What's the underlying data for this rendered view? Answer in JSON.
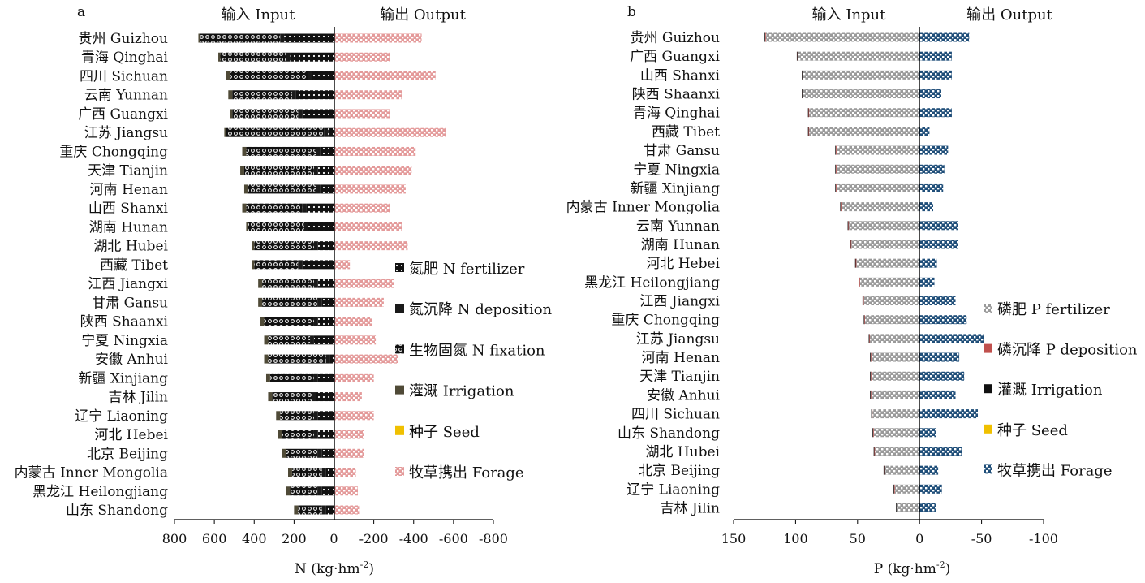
{
  "chart_data": [
    {
      "panel_label": "a",
      "type": "bar",
      "orientation": "horizontal",
      "stacked": true,
      "header_input": "输入 Input",
      "header_output": "输出 Output",
      "xlabel": "N (kg·hm",
      "xlabel_sup": "-2",
      "xlabel_end": ")",
      "xlim": [
        800,
        -800
      ],
      "x_ticks": [
        800,
        600,
        400,
        200,
        0,
        -200,
        -400,
        -600,
        -800
      ],
      "categories": [
        "贵州 Guizhou",
        "青海 Qinghai",
        "四川 Sichuan",
        "云南 Yunnan",
        "广西 Guangxi",
        "江苏 Jiangsu",
        "重庆 Chongqing",
        "天津 Tianjin",
        "河南 Henan",
        "山西 Shanxi",
        "湖南 Hunan",
        "湖北 Hubei",
        "西藏 Tibet",
        "江西 Jiangxi",
        "甘肃 Gansu",
        "陕西 Shaanxi",
        "宁夏 Ningxia",
        "安徽 Anhui",
        "新疆 Xinjiang",
        "吉林 Jilin",
        "辽宁 Liaoning",
        "河北 Hebei",
        "北京 Beijing",
        "内蒙古 Inner Mongolia",
        "黑龙江 Heilongjiang",
        "山东 Shandong"
      ],
      "series": [
        {
          "name": "氮肥 N fertilizer",
          "color": "#1a1a1a",
          "pattern": "fert",
          "values": [
            250,
            220,
            110,
            190,
            160,
            30,
            70,
            80,
            70,
            140,
            130,
            80,
            160,
            80,
            60,
            80,
            100,
            20,
            80,
            90,
            80,
            80,
            60,
            40,
            60,
            40
          ]
        },
        {
          "name": "氮沉降 N deposition",
          "color": "#1a1a1a",
          "pattern": "solid",
          "values": [
            20,
            20,
            20,
            20,
            20,
            20,
            20,
            20,
            20,
            20,
            20,
            20,
            20,
            20,
            20,
            20,
            20,
            20,
            20,
            20,
            20,
            20,
            20,
            20,
            20,
            20
          ]
        },
        {
          "name": "生物固氮 N fixation",
          "color": "#1a1a1a",
          "pattern": "fix",
          "values": [
            400,
            330,
            390,
            300,
            330,
            490,
            350,
            350,
            340,
            280,
            280,
            300,
            220,
            260,
            280,
            250,
            210,
            290,
            220,
            200,
            170,
            160,
            160,
            150,
            140,
            120
          ]
        },
        {
          "name": "灌溉 Irrigation",
          "color": "#4f4a37",
          "pattern": "solid",
          "values": [
            10,
            10,
            20,
            20,
            10,
            10,
            20,
            20,
            20,
            20,
            10,
            10,
            10,
            20,
            20,
            20,
            20,
            20,
            20,
            20,
            20,
            20,
            20,
            20,
            20,
            20
          ]
        },
        {
          "name": "种子 Seed",
          "color": "#f0c000",
          "pattern": "solid",
          "values": [
            0,
            0,
            0,
            0,
            0,
            0,
            0,
            0,
            0,
            0,
            0,
            0,
            0,
            0,
            0,
            0,
            0,
            0,
            0,
            0,
            0,
            0,
            0,
            0,
            0,
            0
          ]
        },
        {
          "name": "牧草携出 Forage",
          "color": "#e49a9a",
          "pattern": "forage",
          "side": "output",
          "values": [
            -440,
            -280,
            -510,
            -340,
            -280,
            -560,
            -410,
            -390,
            -360,
            -280,
            -340,
            -370,
            -80,
            -300,
            -250,
            -190,
            -210,
            -320,
            -200,
            -140,
            -200,
            -150,
            -150,
            -110,
            -120,
            -130
          ]
        }
      ]
    },
    {
      "panel_label": "b",
      "type": "bar",
      "orientation": "horizontal",
      "stacked": true,
      "header_input": "输入 Input",
      "header_output": "输出 Output",
      "xlabel": "P (kg·hm",
      "xlabel_sup": "-2",
      "xlabel_end": ")",
      "xlim": [
        150,
        -100
      ],
      "x_ticks": [
        150,
        100,
        50,
        0,
        -50,
        -100
      ],
      "categories": [
        "贵州 Guizhou",
        "广西 Guangxi",
        "山西 Shanxi",
        "陕西 Shaanxi",
        "青海 Qinghai",
        "西藏 Tibet",
        "甘肃 Gansu",
        "宁夏 Ningxia",
        "新疆 Xinjiang",
        "内蒙古 Inner Mongolia",
        "云南 Yunnan",
        "湖南 Hunan",
        "河北 Hebei",
        "黑龙江 Heilongjiang",
        "江西 Jiangxi",
        "重庆 Chongqing",
        "江苏 Jiangsu",
        "河南 Henan",
        "天津 Tianjin",
        "安徽 Anhui",
        "四川 Sichuan",
        "山东 Shandong",
        "湖北 Hubei",
        "北京 Beijing",
        "辽宁 Liaoning",
        "吉林 Jilin"
      ],
      "series": [
        {
          "name": "磷肥 P fertilizer",
          "color": "#9a9a9a",
          "pattern": "pfert",
          "values": [
            124,
            98,
            94,
            94,
            89,
            89,
            67,
            67,
            67,
            63,
            57,
            55,
            51,
            48,
            45,
            44,
            40,
            39,
            39,
            39,
            38,
            37,
            36,
            28,
            20,
            18
          ]
        },
        {
          "name": "磷沉降 P deposition",
          "color": "#c0504d",
          "pattern": "solid",
          "values": [
            0.5,
            0.5,
            0.5,
            0.5,
            0.5,
            0.5,
            0.5,
            0.5,
            0.5,
            0.5,
            0.5,
            0.5,
            0.5,
            0.5,
            0.5,
            0.5,
            0.5,
            0.5,
            0.5,
            0.5,
            0.5,
            0.5,
            0.5,
            0.5,
            0.5,
            0.5
          ]
        },
        {
          "name": "灌溉 Irrigation",
          "color": "#111111",
          "pattern": "solid",
          "values": [
            0.5,
            0.5,
            0.5,
            0.5,
            0.5,
            0.5,
            0.5,
            0.5,
            0.5,
            0.5,
            0.5,
            0.5,
            0.5,
            0.5,
            0.5,
            0.5,
            0.5,
            0.5,
            0.5,
            0.5,
            0.5,
            0.5,
            0.5,
            0.5,
            0.5,
            0.5
          ]
        },
        {
          "name": "种子 Seed",
          "color": "#f0c000",
          "pattern": "solid",
          "values": [
            0,
            0,
            0,
            0,
            0,
            0,
            0,
            0,
            0,
            0,
            0,
            0,
            0,
            0,
            0,
            0,
            0,
            0,
            0,
            0,
            0,
            0,
            0,
            0,
            0,
            0
          ]
        },
        {
          "name": "牧草携出 Forage",
          "color": "#1f4e79",
          "pattern": "pforage",
          "side": "output",
          "values": [
            -40,
            -26,
            -26,
            -17,
            -26,
            -8,
            -23,
            -20,
            -19,
            -11,
            -31,
            -31,
            -14,
            -12,
            -29,
            -38,
            -52,
            -32,
            -36,
            -29,
            -47,
            -13,
            -34,
            -15,
            -18,
            -13
          ]
        }
      ]
    }
  ]
}
